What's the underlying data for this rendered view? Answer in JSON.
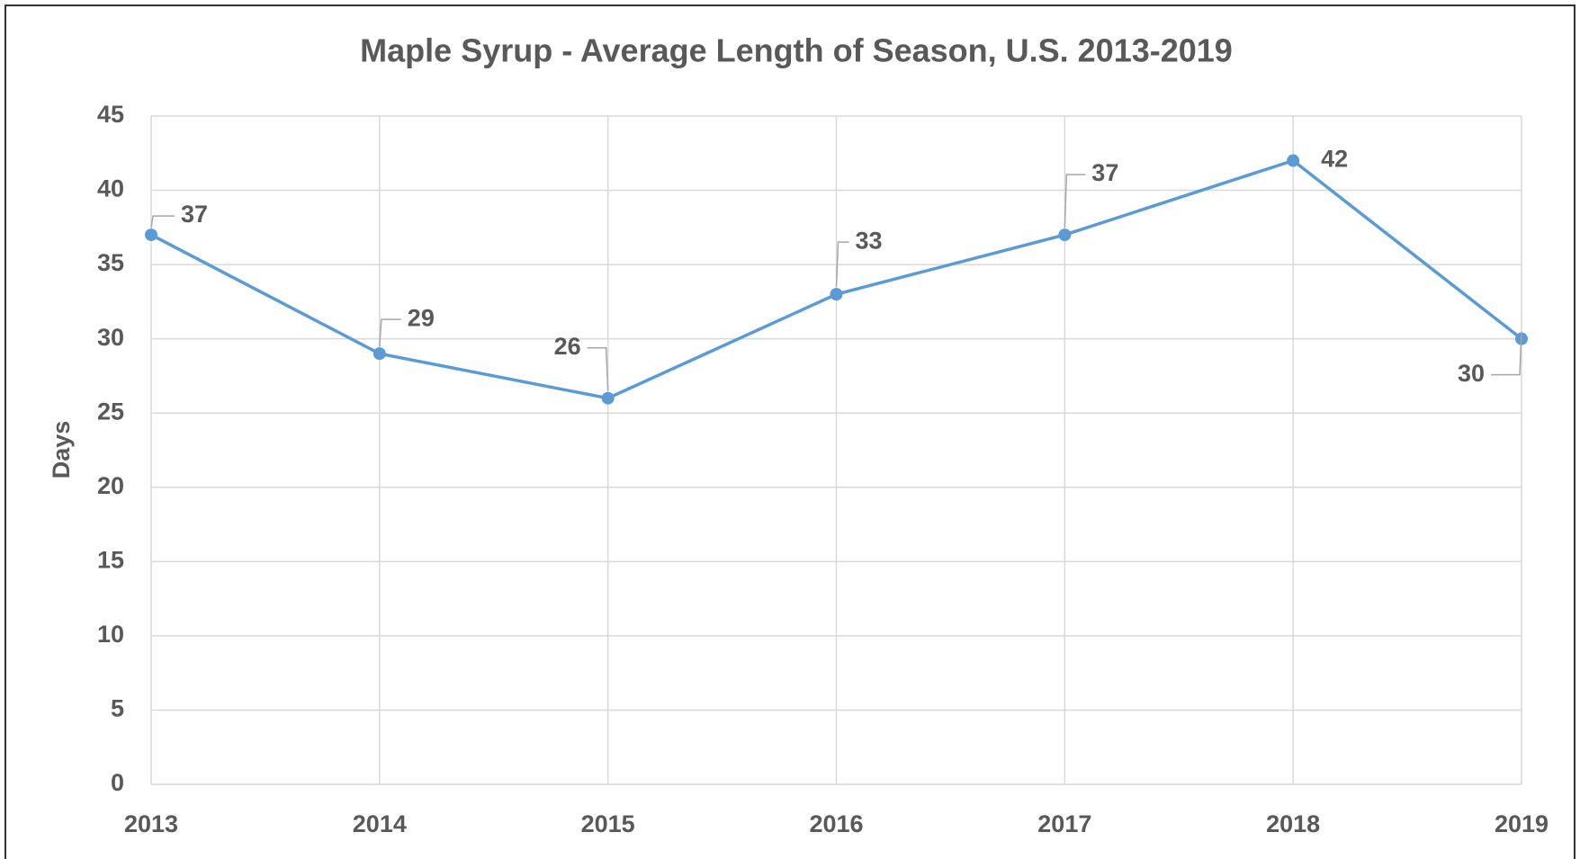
{
  "chart_data": {
    "type": "line",
    "title": "Maple Syrup - Average Length of Season, U.S. 2013-2019",
    "y_label": "Days",
    "categories": [
      "2013",
      "2014",
      "2015",
      "2016",
      "2017",
      "2018",
      "2019"
    ],
    "series": [
      {
        "name": "Days",
        "color": "#5b9bd5",
        "values": [
          37,
          29,
          26,
          33,
          37,
          42,
          30
        ]
      }
    ],
    "ylim": [
      0,
      45
    ],
    "yticks": [
      0,
      5,
      10,
      15,
      20,
      25,
      30,
      35,
      40,
      45
    ],
    "grid": true
  }
}
